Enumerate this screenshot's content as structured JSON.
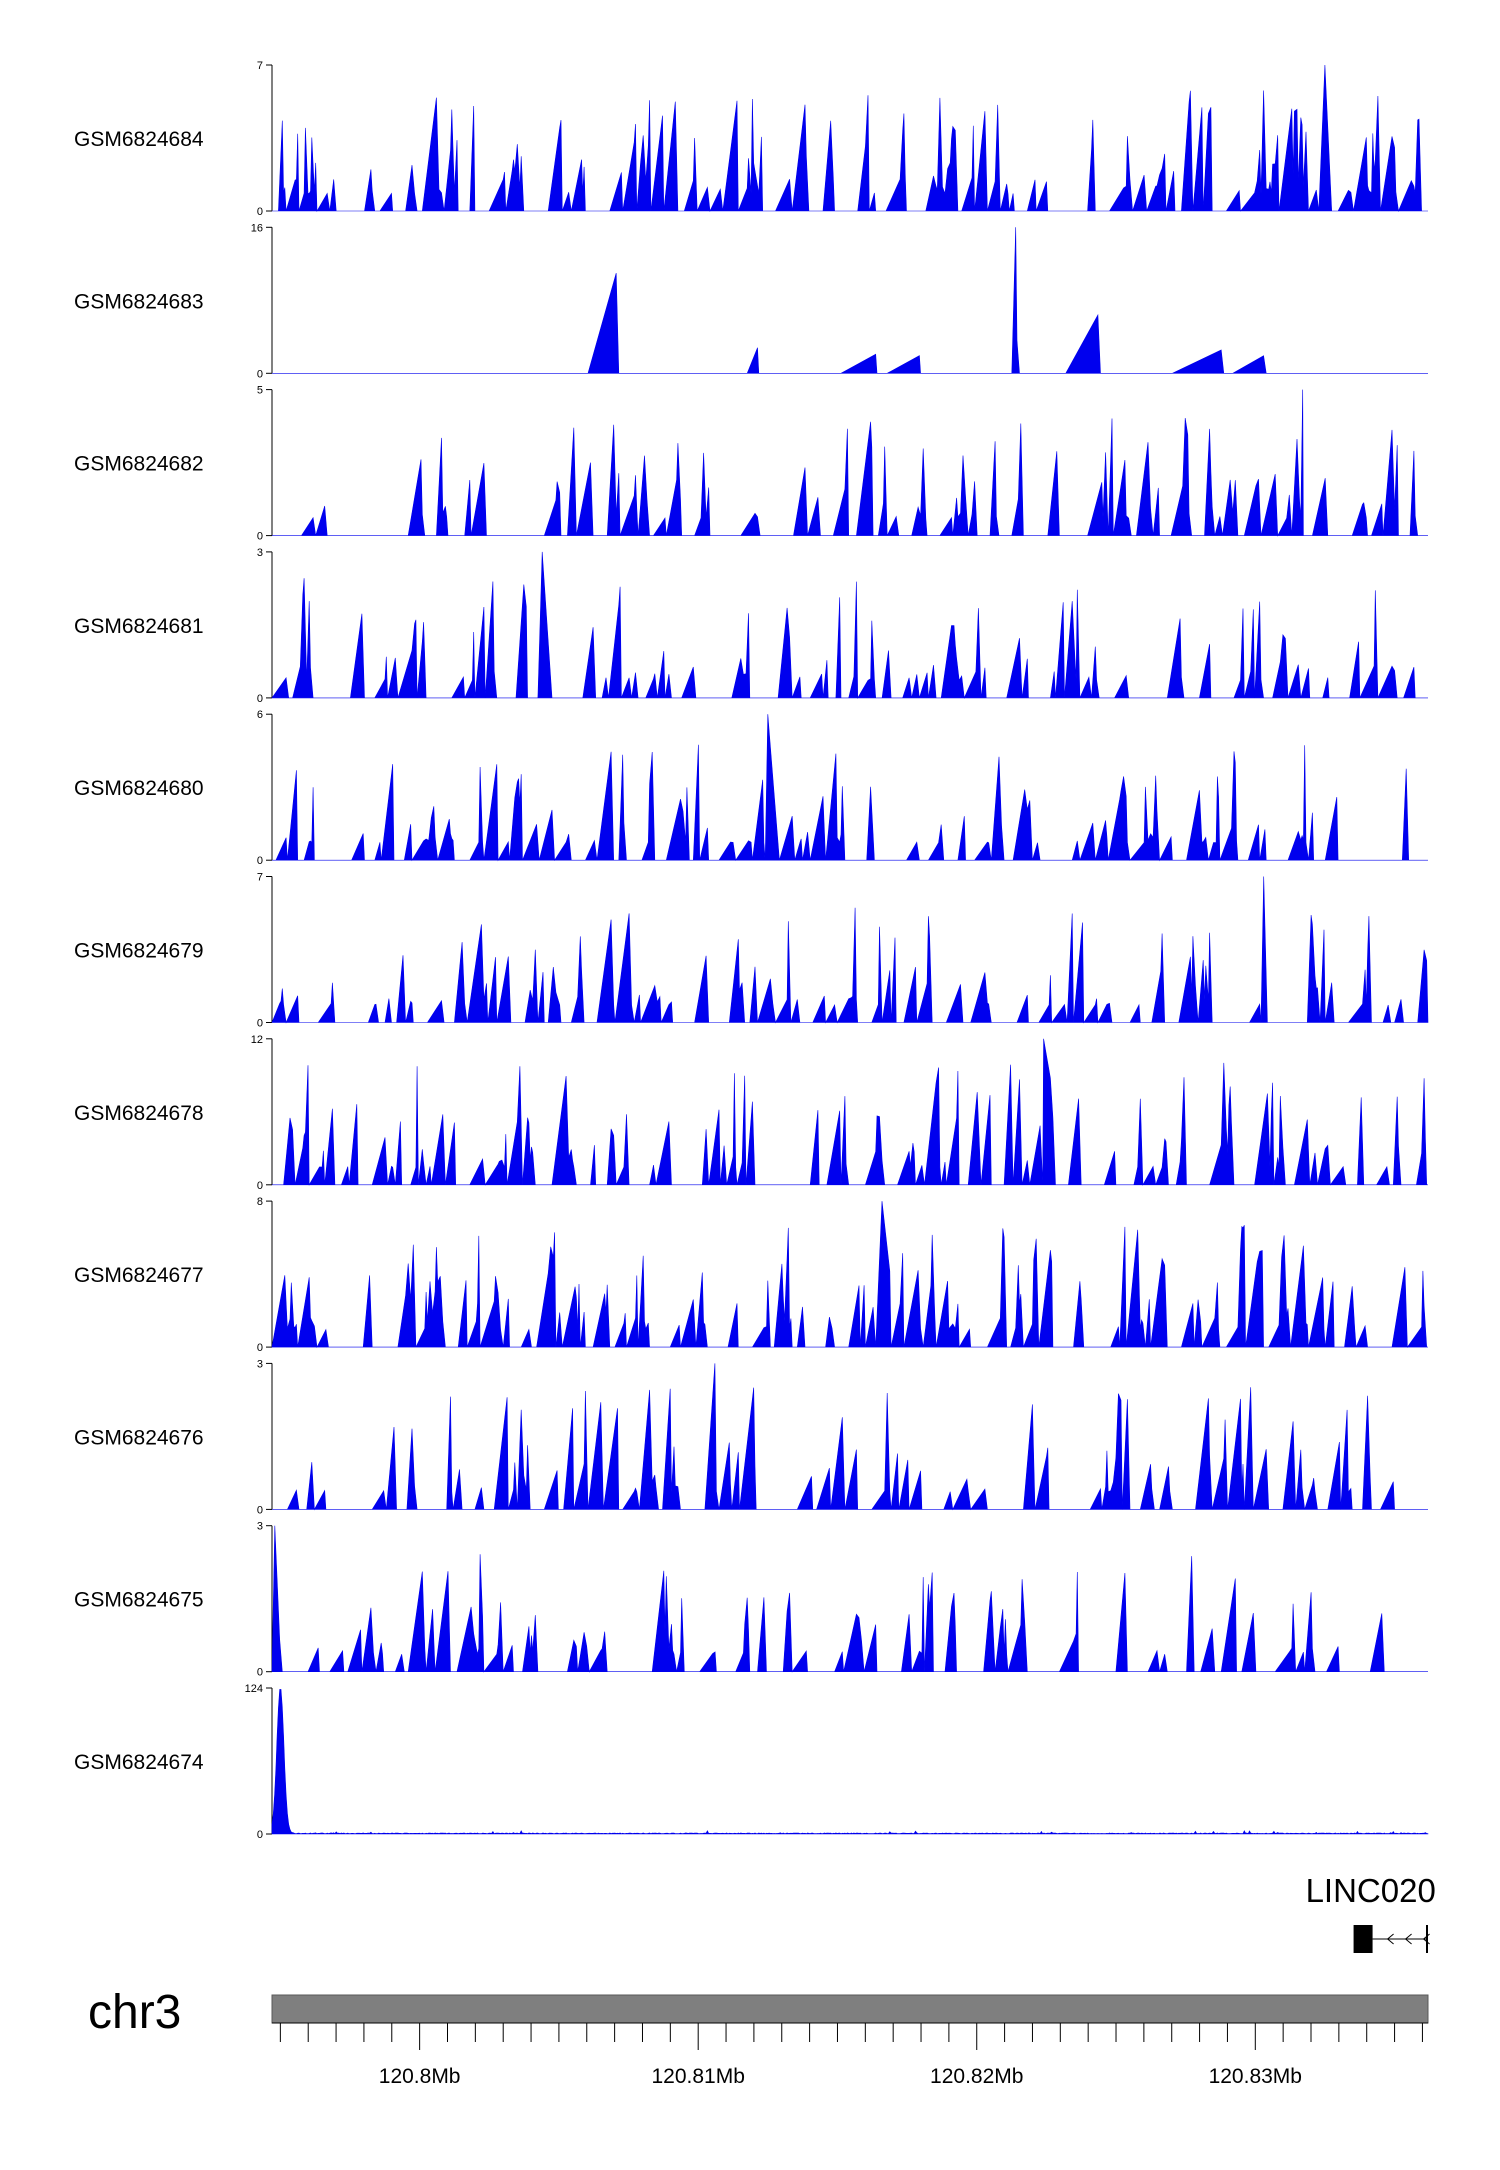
{
  "chart_data": {
    "type": "area",
    "color": "#0000ee",
    "x_domain_mb": [
      120.7947,
      120.8362
    ],
    "tracks": [
      {
        "name": "GSM6824684",
        "ymax": 7,
        "ymin": 0,
        "seed": 11,
        "density": 0.55,
        "peak_mb": 120.8325,
        "peak_val": 7
      },
      {
        "name": "GSM6824683",
        "ymax": 16,
        "ymin": 0,
        "seed": 23,
        "density": 0.25,
        "peak_mb": 120.8214,
        "peak_val": 16
      },
      {
        "name": "GSM6824682",
        "ymax": 5,
        "ymin": 0,
        "seed": 37,
        "density": 0.55,
        "peak_mb": 120.8317,
        "peak_val": 5
      },
      {
        "name": "GSM6824681",
        "ymax": 3,
        "ymin": 0,
        "seed": 41,
        "density": 0.45,
        "peak_mb": 120.8044,
        "peak_val": 3
      },
      {
        "name": "GSM6824680",
        "ymax": 6,
        "ymin": 0,
        "seed": 53,
        "density": 0.5,
        "peak_mb": 120.8125,
        "peak_val": 6
      },
      {
        "name": "GSM6824679",
        "ymax": 7,
        "ymin": 0,
        "seed": 67,
        "density": 0.5,
        "peak_mb": 120.8303,
        "peak_val": 7
      },
      {
        "name": "GSM6824678",
        "ymax": 12,
        "ymin": 0,
        "seed": 71,
        "density": 0.5,
        "peak_mb": 120.8224,
        "peak_val": 12
      },
      {
        "name": "GSM6824677",
        "ymax": 8,
        "ymin": 0,
        "seed": 83,
        "density": 0.6,
        "peak_mb": 120.8166,
        "peak_val": 8
      },
      {
        "name": "GSM6824676",
        "ymax": 3,
        "ymin": 0,
        "seed": 97,
        "density": 0.5,
        "peak_mb": 120.8106,
        "peak_val": 3
      },
      {
        "name": "GSM6824675",
        "ymax": 3,
        "ymin": 0,
        "seed": 101,
        "density": 0.5,
        "peak_mb": 120.7948,
        "peak_val": 3
      },
      {
        "name": "GSM6824674",
        "ymax": 124,
        "ymin": 0,
        "seed": 113,
        "density": 0.0,
        "peak_mb": 120.795,
        "peak_val": 124
      }
    ],
    "gene": {
      "label": "LINC020",
      "start_mb": 120.8336,
      "end_mb": 120.8362,
      "strand": "-"
    },
    "chromosome": "chr3",
    "x_ticks_mb": [
      120.795,
      120.796,
      120.797,
      120.798,
      120.799,
      120.8,
      120.801,
      120.802,
      120.803,
      120.804,
      120.805,
      120.806,
      120.807,
      120.808,
      120.809,
      120.81,
      120.811,
      120.812,
      120.813,
      120.814,
      120.815,
      120.816,
      120.817,
      120.818,
      120.819,
      120.82,
      120.821,
      120.822,
      120.823,
      120.824,
      120.825,
      120.826,
      120.827,
      120.828,
      120.829,
      120.83,
      120.831,
      120.832,
      120.833,
      120.834,
      120.835,
      120.836
    ],
    "x_tick_labels": [
      {
        "mb": 120.8,
        "label": "120.8Mb"
      },
      {
        "mb": 120.81,
        "label": "120.81Mb"
      },
      {
        "mb": 120.82,
        "label": "120.82Mb"
      },
      {
        "mb": 120.83,
        "label": "120.83Mb"
      }
    ],
    "grid": false,
    "legend": "none"
  }
}
